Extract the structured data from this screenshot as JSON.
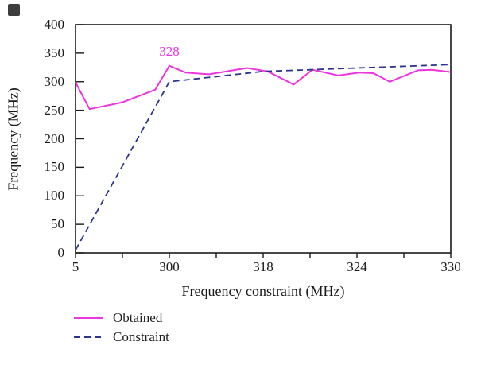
{
  "chart_data": {
    "type": "line",
    "title": "",
    "xlabel": "Frequency constraint (MHz)",
    "ylabel": "Frequency (MHz)",
    "ylim": [
      0,
      400
    ],
    "yticks": [
      0,
      50,
      100,
      150,
      200,
      250,
      300,
      350,
      400
    ],
    "xtick_labels": [
      "5",
      "",
      "300",
      "",
      "318",
      "",
      "324",
      "",
      "330"
    ],
    "grid": false,
    "legend_position": "bottom-left",
    "annotation": {
      "text": "328",
      "tick_pos": 2,
      "value": 328
    },
    "series": [
      {
        "name": "Obtained",
        "color": "#ee35dd",
        "line_style": "solid",
        "points": [
          [
            0,
            299
          ],
          [
            0.3,
            252
          ],
          [
            1.0,
            264
          ],
          [
            1.7,
            286
          ],
          [
            2.0,
            328
          ],
          [
            2.35,
            316
          ],
          [
            2.85,
            313
          ],
          [
            3.65,
            324
          ],
          [
            4.1,
            318
          ],
          [
            4.65,
            295
          ],
          [
            5.05,
            321
          ],
          [
            5.6,
            311
          ],
          [
            6.05,
            316
          ],
          [
            6.35,
            315
          ],
          [
            6.7,
            300
          ],
          [
            7.3,
            320
          ],
          [
            7.6,
            321
          ],
          [
            8,
            317
          ]
        ]
      },
      {
        "name": "Constraint",
        "color": "#2c3390",
        "line_style": "dashed",
        "points": [
          [
            0,
            5
          ],
          [
            2,
            300
          ],
          [
            3,
            309
          ],
          [
            4,
            318
          ],
          [
            5,
            321
          ],
          [
            6,
            324
          ],
          [
            7,
            327
          ],
          [
            8,
            330
          ]
        ]
      }
    ],
    "colors": {
      "axis": "#1a1a1a",
      "obtained": "#ee35dd",
      "constraint": "#2c3390"
    }
  }
}
